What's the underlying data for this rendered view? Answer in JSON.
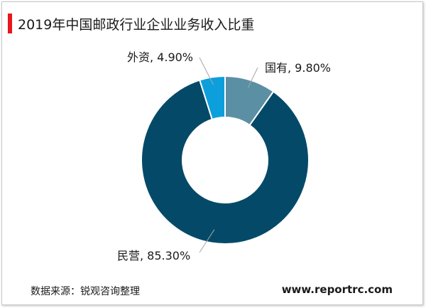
{
  "title": "2019年中国邮政行业企业业务收入比重",
  "source": "数据来源：锐观咨询整理",
  "site": "www.reportrc.com",
  "colors": {
    "accent": "#e8171b",
    "leader_line": "#a6a6a6"
  },
  "chart_data": {
    "type": "pie",
    "subtype": "donut",
    "title": "2019年中国邮政行业企业业务收入比重",
    "slices": [
      {
        "name": "国有",
        "value": 9.8,
        "label": "国有, 9.80%",
        "color": "#5b8fa3"
      },
      {
        "name": "民营",
        "value": 85.3,
        "label": "民营, 85.30%",
        "color": "#044a68"
      },
      {
        "name": "外资",
        "value": 4.9,
        "label": "外资, 4.90%",
        "color": "#0d9fdc"
      }
    ]
  }
}
